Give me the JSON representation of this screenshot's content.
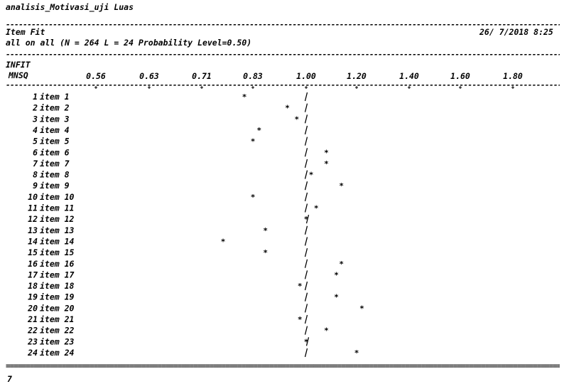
{
  "header": {
    "title": "analisis_Motivasi_uji Luas",
    "section": "Item Fit",
    "subtitle": "all on all (N = 264 L = 24 Probability Level=0.50)",
    "timestamp": "26/ 7/2018 8:25",
    "statistic": "INFIT",
    "unit": "MNSQ"
  },
  "footer": {
    "page_mark": "7"
  },
  "chart_data": {
    "type": "scatter",
    "title": "Item Fit",
    "xlabel": "INFIT MNSQ",
    "tick_labels": [
      "0.56",
      "0.63",
      "0.71",
      "0.83",
      "1.00",
      "1.20",
      "1.40",
      "1.60",
      "1.80"
    ],
    "reference_value": 1.0,
    "items": [
      {
        "num": "1",
        "label": "item 1",
        "infit": 0.81
      },
      {
        "num": "2",
        "label": "item 2",
        "infit": 0.94
      },
      {
        "num": "3",
        "label": "item 3",
        "infit": 0.97
      },
      {
        "num": "4",
        "label": "item 4",
        "infit": 0.85
      },
      {
        "num": "5",
        "label": "item 5",
        "infit": 0.83
      },
      {
        "num": "6",
        "label": "item 6",
        "infit": 1.08
      },
      {
        "num": "7",
        "label": "item 7",
        "infit": 1.08
      },
      {
        "num": "8",
        "label": "item 8",
        "infit": 1.02
      },
      {
        "num": "9",
        "label": "item 9",
        "infit": 1.14
      },
      {
        "num": "10",
        "label": "item 10",
        "infit": 0.83
      },
      {
        "num": "11",
        "label": "item 11",
        "infit": 1.04
      },
      {
        "num": "12",
        "label": "item 12",
        "infit": 1.0
      },
      {
        "num": "13",
        "label": "item 13",
        "infit": 0.87
      },
      {
        "num": "14",
        "label": "item 14",
        "infit": 0.76
      },
      {
        "num": "15",
        "label": "item 15",
        "infit": 0.87
      },
      {
        "num": "16",
        "label": "item 16",
        "infit": 1.14
      },
      {
        "num": "17",
        "label": "item 17",
        "infit": 1.12
      },
      {
        "num": "18",
        "label": "item 18",
        "infit": 0.98
      },
      {
        "num": "19",
        "label": "item 19",
        "infit": 1.12
      },
      {
        "num": "20",
        "label": "item 20",
        "infit": 1.22
      },
      {
        "num": "21",
        "label": "item 21",
        "infit": 0.98
      },
      {
        "num": "22",
        "label": "item 22",
        "infit": 1.08
      },
      {
        "num": "23",
        "label": "item 23",
        "infit": 1.0
      },
      {
        "num": "24",
        "label": "item 24",
        "infit": 1.2
      }
    ]
  }
}
